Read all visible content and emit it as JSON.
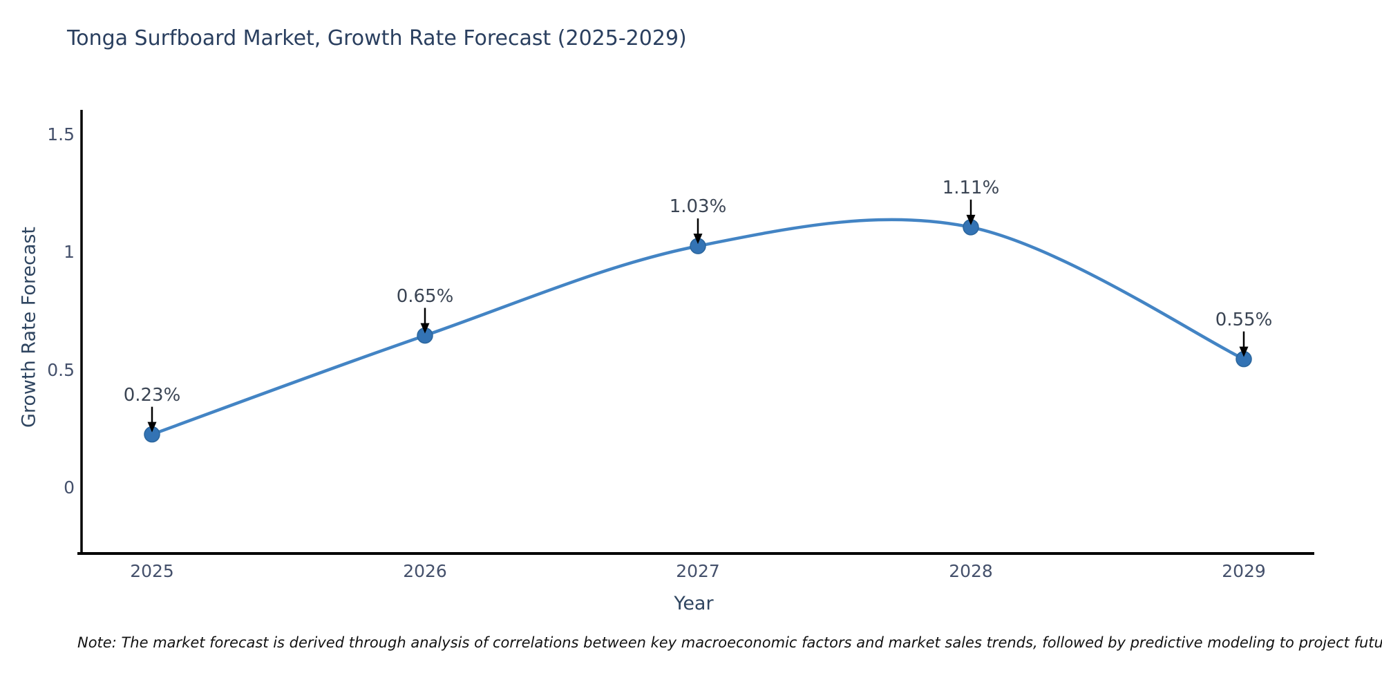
{
  "title": "Tonga Surfboard Market, Growth Rate Forecast (2025-2029)",
  "note": "Note: The market forecast is derived through analysis of correlations between key macroeconomic factors and market sales trends, followed by predictive modeling to project future sales",
  "colors": {
    "line": "#4384c4",
    "marker": "#3373b4",
    "marker_edge": "#2a659c",
    "axis_spine": "#000000",
    "arrow": "#000000",
    "title_text": "#2a3f5f",
    "tick_text": "#44506b"
  },
  "chart_data": {
    "type": "line",
    "title": "Tonga Surfboard Market, Growth Rate Forecast (2025-2029)",
    "xlabel": "Year",
    "ylabel": "Growth Rate Forecast",
    "x": [
      2025,
      2026,
      2027,
      2028,
      2029
    ],
    "series": [
      {
        "name": "Growth Rate Forecast",
        "values": [
          0.23,
          0.65,
          1.03,
          1.11,
          0.55
        ]
      }
    ],
    "point_labels": [
      "0.23%",
      "0.65%",
      "1.03%",
      "1.11%",
      "0.55%"
    ],
    "yticks": [
      0,
      0.5,
      1,
      1.5
    ],
    "ytick_labels": [
      "0",
      "0.5",
      "1",
      "1.5"
    ],
    "xtick_labels": [
      "2025",
      "2026",
      "2027",
      "2028",
      "2029"
    ],
    "ylim": [
      -0.28,
      1.6
    ],
    "line_shape": "spline",
    "grid": false,
    "legend": false,
    "annotations_unit": "%"
  }
}
